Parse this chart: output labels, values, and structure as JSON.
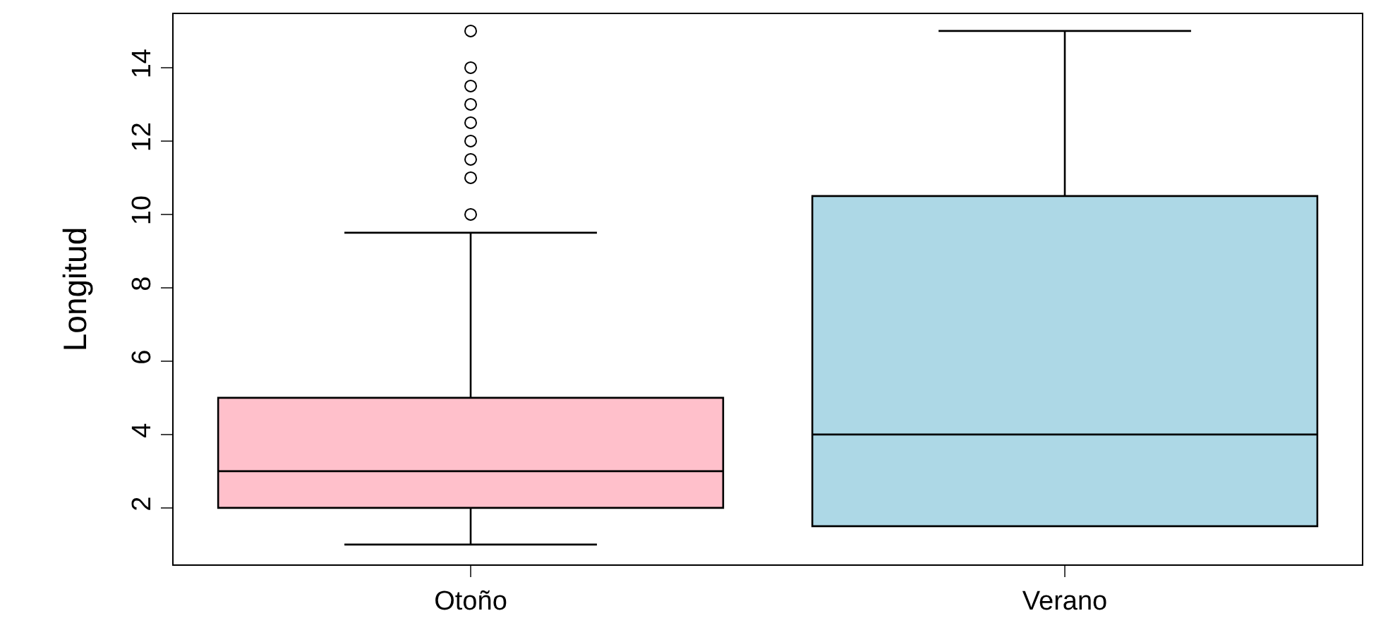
{
  "chart_data": {
    "type": "box",
    "ylabel": "Longitud",
    "categories": [
      "Otoño",
      "Verano"
    ],
    "boxes": [
      {
        "low": 1,
        "q1": 2,
        "median": 3,
        "q3": 5,
        "high": 9.5,
        "outliers": [
          10,
          11,
          11.5,
          12,
          12.5,
          13,
          13.5,
          14,
          15
        ]
      },
      {
        "low": 1.5,
        "q1": 1.5,
        "median": 4,
        "q3": 10.5,
        "high": 15
      }
    ],
    "colors": [
      "#ffc0cb",
      "#add8e6"
    ],
    "ylim": [
      0.46,
      15.46
    ],
    "yticks": [
      2,
      4,
      6,
      8,
      10,
      12,
      14
    ],
    "grid": false
  }
}
